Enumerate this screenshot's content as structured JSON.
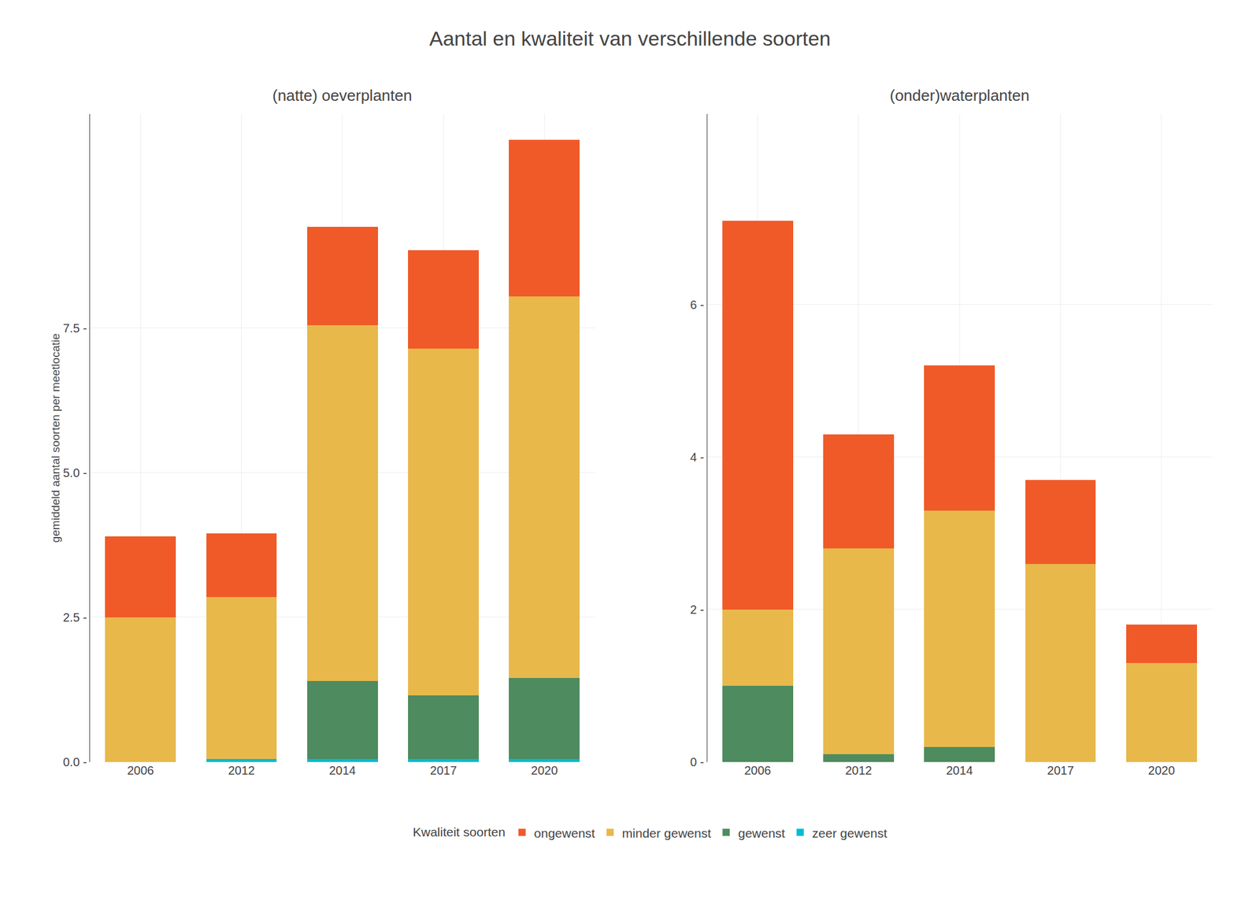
{
  "title": "Aantal en kwaliteit van verschillende soorten",
  "legend_title": "Kwaliteit soorten",
  "chart_data": [
    {
      "type": "bar",
      "title": "(natte) oeverplanten",
      "y_label": "gemiddeld aantal soorten per meetlocatie",
      "categories": [
        "2006",
        "2012",
        "2014",
        "2017",
        "2020"
      ],
      "series": [
        {
          "name": "zeer gewenst",
          "color": "#00BCD4",
          "values": [
            0.0,
            0.05,
            0.05,
            0.05,
            0.05
          ]
        },
        {
          "name": "gewenst",
          "color": "#4E8B5F",
          "values": [
            0.0,
            0.0,
            1.35,
            1.1,
            1.4
          ]
        },
        {
          "name": "minder gewenst",
          "color": "#E8B84B",
          "values": [
            2.5,
            2.8,
            6.15,
            6.0,
            6.6
          ]
        },
        {
          "name": "ongewenst",
          "color": "#F05A28",
          "values": [
            1.4,
            1.1,
            1.7,
            1.7,
            2.7
          ]
        }
      ],
      "ylim": [
        0,
        11.2
      ],
      "yticks": [
        {
          "value": 0.0,
          "label": "0.0 -"
        },
        {
          "value": 2.5,
          "label": "2.5 -"
        },
        {
          "value": 5.0,
          "label": "5.0 -"
        },
        {
          "value": 7.5,
          "label": "7.5 -"
        }
      ],
      "stacked": true,
      "grid": true,
      "legend": "bottom"
    },
    {
      "type": "bar",
      "title": "(onder)waterplanten",
      "categories": [
        "2006",
        "2012",
        "2014",
        "2017",
        "2020"
      ],
      "series": [
        {
          "name": "zeer gewenst",
          "color": "#00BCD4",
          "values": [
            0.0,
            0.0,
            0.0,
            0.0,
            0.0
          ]
        },
        {
          "name": "gewenst",
          "color": "#4E8B5F",
          "values": [
            1.0,
            0.1,
            0.2,
            0.0,
            0.0
          ]
        },
        {
          "name": "minder gewenst",
          "color": "#E8B84B",
          "values": [
            1.0,
            2.7,
            3.1,
            2.6,
            1.3
          ]
        },
        {
          "name": "ongewenst",
          "color": "#F05A28",
          "values": [
            5.1,
            1.5,
            1.9,
            1.1,
            0.5
          ]
        }
      ],
      "ylim": [
        0,
        8.5
      ],
      "yticks": [
        {
          "value": 0,
          "label": "0 -"
        },
        {
          "value": 2,
          "label": "2 -"
        },
        {
          "value": 4,
          "label": "4 -"
        },
        {
          "value": 6,
          "label": "6 -"
        }
      ],
      "stacked": true,
      "grid": true,
      "legend": "bottom"
    }
  ]
}
